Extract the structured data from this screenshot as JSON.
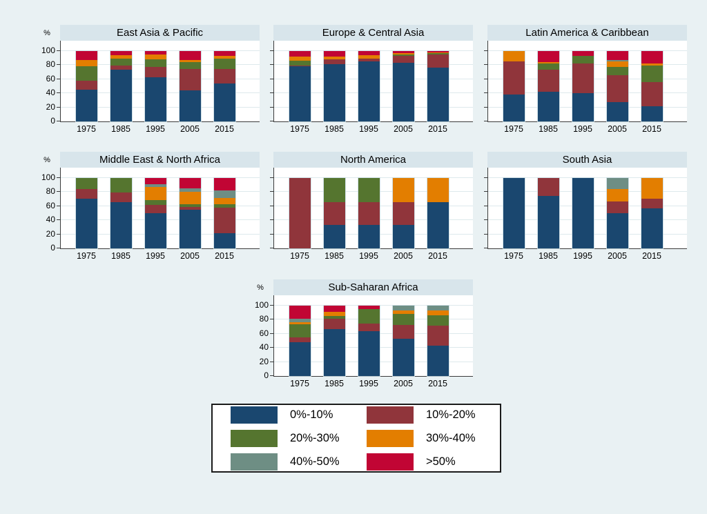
{
  "figure": {
    "y_axis_unit": "%",
    "legend": [
      {
        "label": "0%-10%",
        "color": "#1a476f"
      },
      {
        "label": "10%-20%",
        "color": "#90353b"
      },
      {
        "label": "20%-30%",
        "color": "#55752f"
      },
      {
        "label": "30%-40%",
        "color": "#e37e00"
      },
      {
        "label": "40%-50%",
        "color": "#6e8e84"
      },
      {
        "label": ">50%",
        "color": "#c10534"
      }
    ],
    "colors": {
      "background": "#e9f1f3",
      "panel_title_band": "#d8e5eb",
      "plot_background": "#ffffff",
      "gridline": "#dde9ec",
      "axis": "#3a3a3a"
    }
  },
  "chart_data": {
    "type": "bar",
    "stacked": true,
    "title": "",
    "ylabel": "%",
    "ylim": [
      0,
      100
    ],
    "y_ticks": [
      0,
      20,
      40,
      60,
      80,
      100
    ],
    "categories": [
      "1975",
      "1985",
      "1995",
      "2005",
      "2015"
    ],
    "buckets": [
      "0%-10%",
      "10%-20%",
      "20%-30%",
      "30%-40%",
      "40%-50%",
      ">50%"
    ],
    "legend_position": "bottom",
    "grid": true,
    "panels": [
      {
        "title": "East Asia & Pacific",
        "row": 0,
        "col": 0,
        "values": [
          [
            45,
            13,
            20,
            9,
            0,
            13
          ],
          [
            74,
            5,
            10,
            5,
            0,
            6
          ],
          [
            63,
            14,
            11,
            7,
            0,
            5
          ],
          [
            44,
            31,
            9,
            3,
            0,
            13
          ],
          [
            54,
            21,
            14,
            4,
            0,
            7
          ]
        ]
      },
      {
        "title": "Europe & Central Asia",
        "row": 0,
        "col": 1,
        "values": [
          [
            78,
            1,
            7,
            6,
            0,
            8
          ],
          [
            81,
            7,
            0,
            4,
            0,
            8
          ],
          [
            85,
            4,
            0,
            5,
            0,
            6
          ],
          [
            83,
            10,
            2,
            2,
            0,
            3
          ],
          [
            76,
            19,
            2,
            1,
            0,
            2
          ]
        ]
      },
      {
        "title": "Latin America & Caribbean",
        "row": 0,
        "col": 2,
        "values": [
          [
            38,
            47,
            0,
            15,
            0,
            0
          ],
          [
            42,
            32,
            8,
            2,
            0,
            16
          ],
          [
            40,
            42,
            11,
            0,
            0,
            7
          ],
          [
            27,
            39,
            11,
            8,
            2,
            13
          ],
          [
            22,
            34,
            23,
            3,
            0,
            18
          ]
        ]
      },
      {
        "title": "Middle East & North Africa",
        "row": 1,
        "col": 0,
        "values": [
          [
            71,
            13,
            16,
            0,
            0,
            0
          ],
          [
            66,
            13,
            21,
            0,
            0,
            0
          ],
          [
            50,
            12,
            7,
            18,
            4,
            9
          ],
          [
            55,
            4,
            4,
            17,
            5,
            15
          ],
          [
            22,
            36,
            5,
            9,
            10,
            18
          ]
        ]
      },
      {
        "title": "North America",
        "row": 1,
        "col": 1,
        "values": [
          [
            0,
            100,
            0,
            0,
            0,
            0
          ],
          [
            33,
            33,
            34,
            0,
            0,
            0
          ],
          [
            33,
            33,
            34,
            0,
            0,
            0
          ],
          [
            33,
            33,
            0,
            34,
            0,
            0
          ],
          [
            66,
            0,
            0,
            34,
            0,
            0
          ]
        ]
      },
      {
        "title": "South Asia",
        "row": 1,
        "col": 2,
        "values": [
          [
            100,
            0,
            0,
            0,
            0,
            0
          ],
          [
            75,
            25,
            0,
            0,
            0,
            0
          ],
          [
            100,
            0,
            0,
            0,
            0,
            0
          ],
          [
            50,
            17,
            0,
            17,
            16,
            0
          ],
          [
            57,
            14,
            0,
            29,
            0,
            0
          ]
        ]
      },
      {
        "title": "Sub-Saharan Africa",
        "row": 2,
        "col": 1,
        "values": [
          [
            48,
            7,
            19,
            3,
            4,
            19
          ],
          [
            67,
            14,
            4,
            6,
            0,
            9
          ],
          [
            64,
            11,
            20,
            0,
            0,
            5
          ],
          [
            53,
            20,
            15,
            5,
            7,
            0
          ],
          [
            43,
            29,
            14,
            7,
            7,
            0
          ]
        ]
      }
    ]
  }
}
